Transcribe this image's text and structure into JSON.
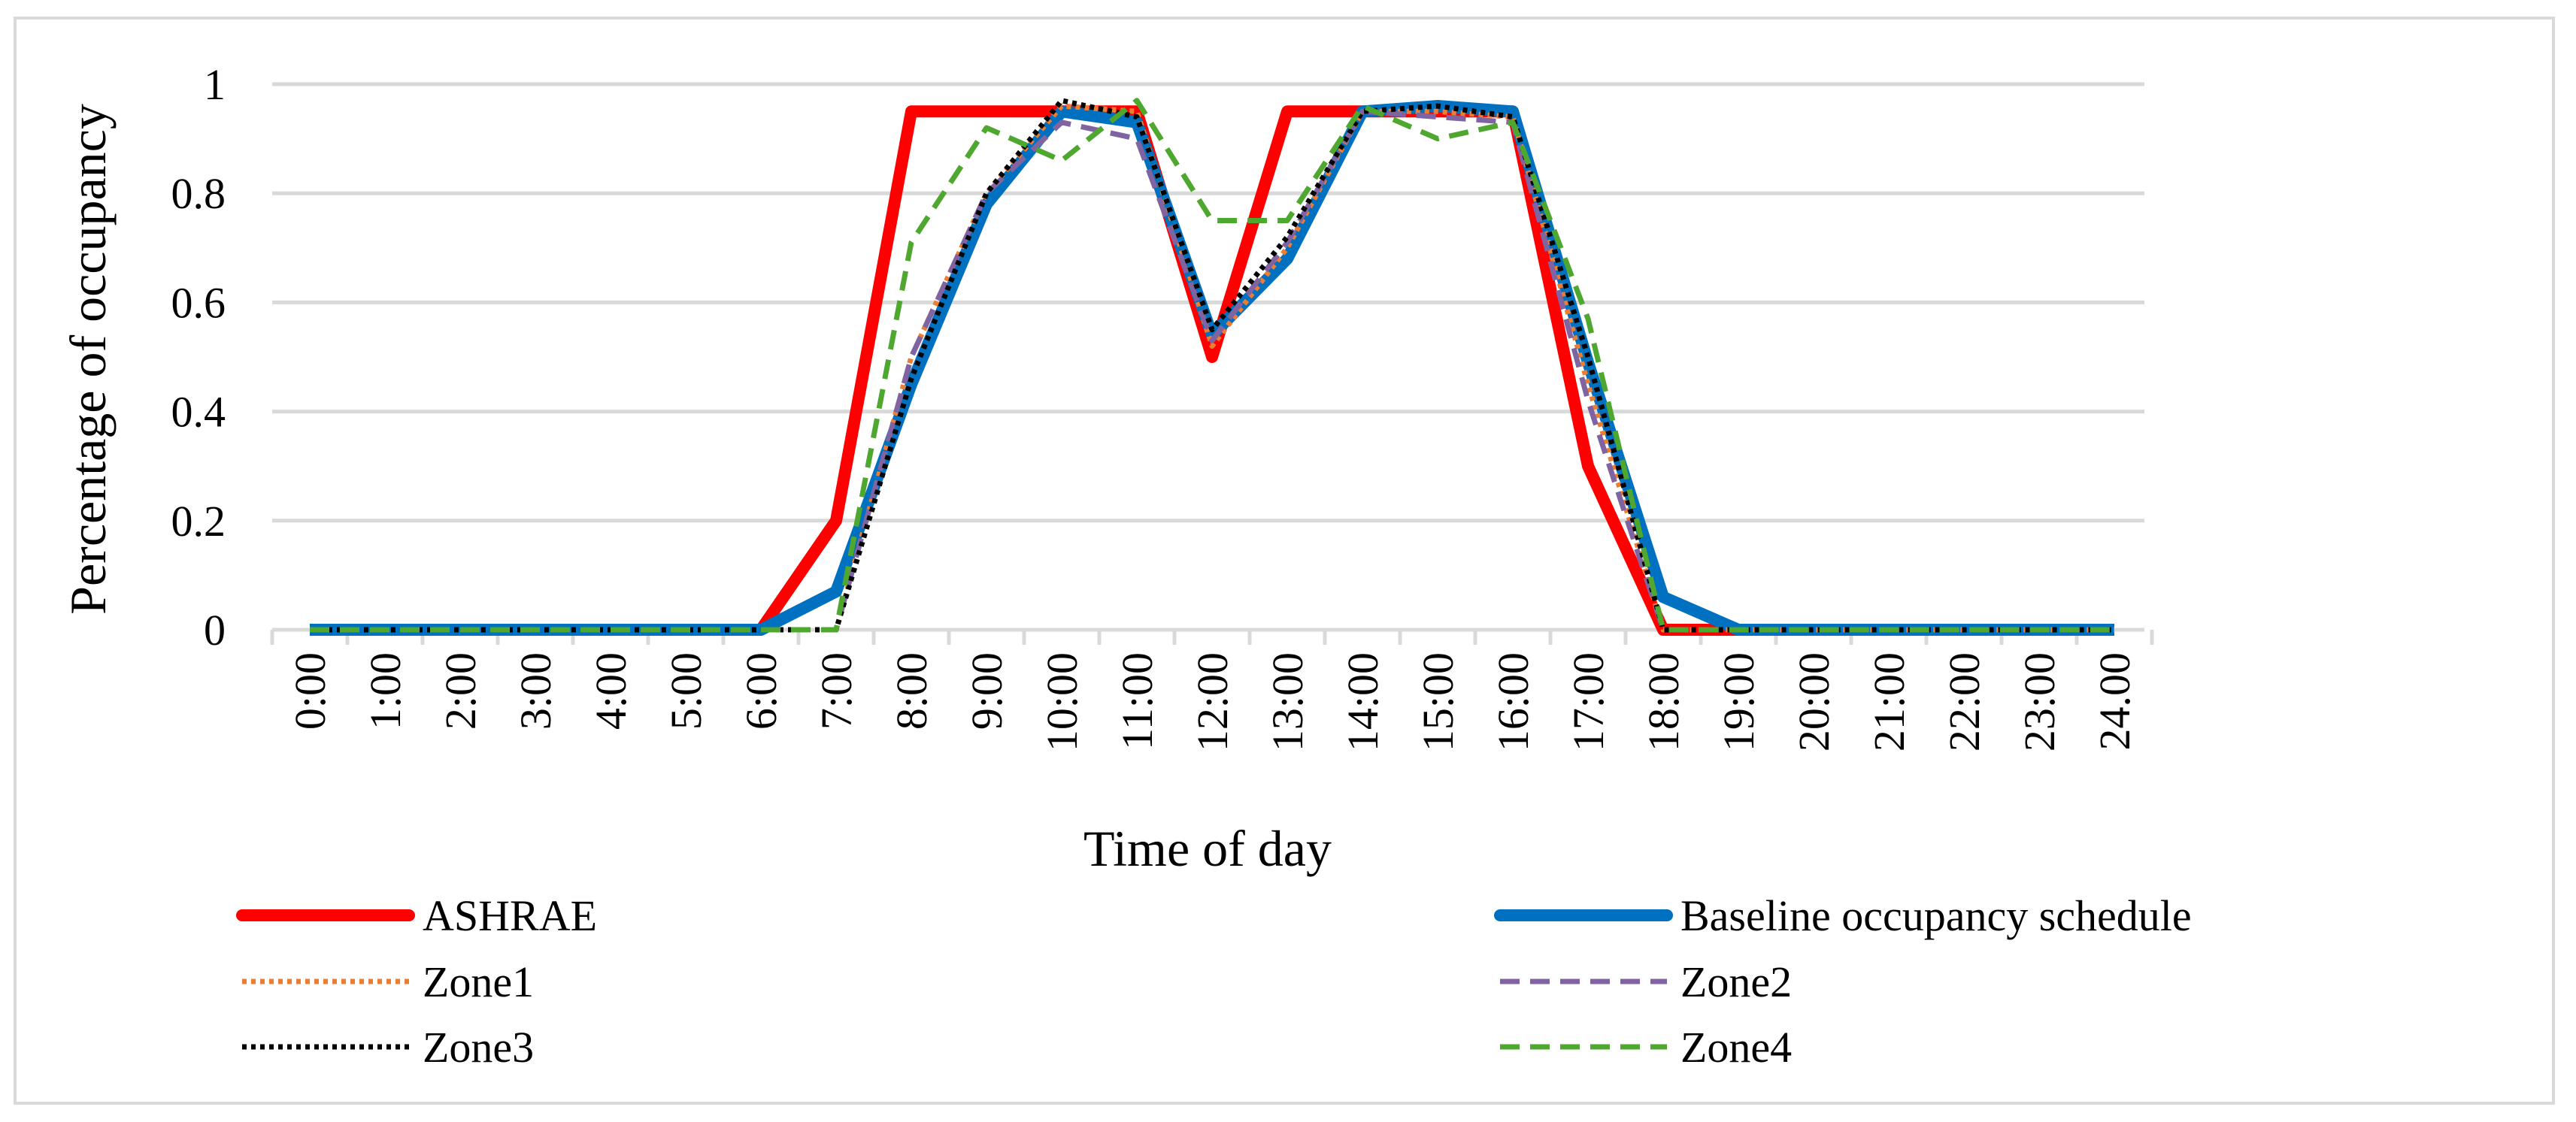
{
  "chart_data": {
    "type": "line",
    "title": "",
    "xlabel": "Time of day",
    "ylabel": "Percentage of occupancy",
    "categories": [
      "0:00",
      "1:00",
      "2:00",
      "3:00",
      "4:00",
      "5:00",
      "6:00",
      "7:00",
      "8:00",
      "9:00",
      "10:00",
      "11:00",
      "12:00",
      "13:00",
      "14:00",
      "15:00",
      "16:00",
      "17:00",
      "18:00",
      "19:00",
      "20:00",
      "21:00",
      "22:00",
      "23:00",
      "24.00"
    ],
    "yticks": [
      "0",
      "0.2",
      "0.4",
      "0.6",
      "0.8",
      "1"
    ],
    "ylim": [
      0,
      1
    ],
    "grid": true,
    "legend_position": "bottom",
    "series": [
      {
        "name": "ASHRAE",
        "color": "#ff0000",
        "style": "solid",
        "weight": "thick",
        "values": [
          0,
          0,
          0,
          0,
          0,
          0,
          0,
          0.2,
          0.95,
          0.95,
          0.95,
          0.95,
          0.5,
          0.95,
          0.95,
          0.95,
          0.95,
          0.3,
          0,
          0,
          0,
          0,
          0,
          0,
          0
        ]
      },
      {
        "name": "Baseline occupancy schedule",
        "color": "#0070c0",
        "style": "solid",
        "weight": "thick",
        "values": [
          0,
          0,
          0,
          0,
          0,
          0,
          0,
          0.07,
          0.45,
          0.78,
          0.95,
          0.93,
          0.54,
          0.68,
          0.95,
          0.96,
          0.95,
          0.49,
          0.06,
          0,
          0,
          0,
          0,
          0,
          0
        ]
      },
      {
        "name": "Zone1",
        "color": "#ed7d31",
        "style": "dot",
        "weight": "medium",
        "values": [
          0,
          0,
          0,
          0,
          0,
          0,
          0,
          0,
          0.5,
          0.8,
          0.96,
          0.95,
          0.52,
          0.7,
          0.95,
          0.95,
          0.94,
          0.45,
          0,
          0,
          0,
          0,
          0,
          0,
          0
        ]
      },
      {
        "name": "Zone2",
        "color": "#8064a2",
        "style": "dash",
        "weight": "medium",
        "values": [
          0,
          0,
          0,
          0,
          0,
          0,
          0,
          0,
          0.5,
          0.8,
          0.93,
          0.9,
          0.53,
          0.71,
          0.95,
          0.94,
          0.93,
          0.42,
          0,
          0,
          0,
          0,
          0,
          0,
          0
        ]
      },
      {
        "name": "Zone3",
        "color": "#000000",
        "style": "dot",
        "weight": "medium",
        "values": [
          0,
          0,
          0,
          0,
          0,
          0,
          0,
          0,
          0.46,
          0.8,
          0.97,
          0.94,
          0.55,
          0.72,
          0.95,
          0.96,
          0.94,
          0.5,
          0,
          0,
          0,
          0,
          0,
          0,
          0
        ]
      },
      {
        "name": "Zone4",
        "color": "#4ea72e",
        "style": "dash",
        "weight": "medium",
        "values": [
          0,
          0,
          0,
          0,
          0,
          0,
          0,
          0,
          0.71,
          0.92,
          0.86,
          0.97,
          0.75,
          0.75,
          0.96,
          0.9,
          0.93,
          0.57,
          0,
          0,
          0,
          0,
          0,
          0,
          0
        ]
      }
    ]
  }
}
